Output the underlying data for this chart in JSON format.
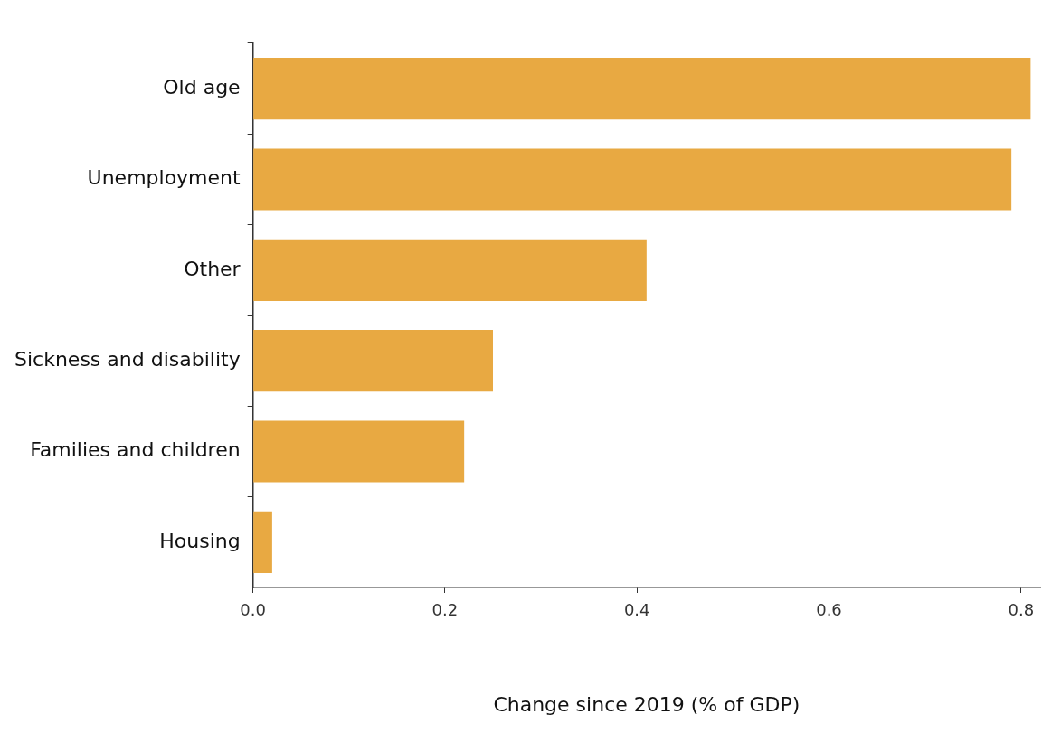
{
  "chart_data": {
    "type": "bar",
    "orientation": "horizontal",
    "xlabel": "Change since 2019 (% of GDP)",
    "categories": [
      "Old age",
      "Unemployment",
      "Other",
      "Sickness and disability",
      "Families and children",
      "Housing"
    ],
    "values": [
      0.81,
      0.79,
      0.41,
      0.25,
      0.22,
      0.02
    ],
    "color": "#e8a942",
    "xlim": [
      0,
      0.82
    ],
    "xticks": [
      {
        "value": 0,
        "label": "0.0"
      },
      {
        "value": 0.2,
        "label": "0.2"
      },
      {
        "value": 0.4,
        "label": "0.4"
      },
      {
        "value": 0.6,
        "label": "0.6"
      },
      {
        "value": 0.8,
        "label": "0.8"
      }
    ],
    "grid": false,
    "legend": false
  }
}
